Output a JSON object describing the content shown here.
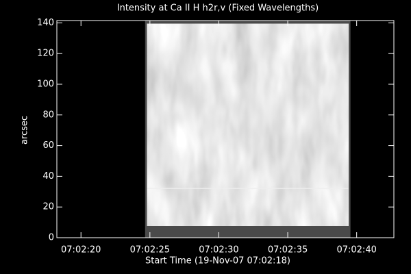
{
  "chart_data": {
    "type": "image",
    "title": "Intensity at Ca II H h2r,v (Fixed Wavelengths)",
    "x_label": "Start Time (19-Nov-07 07:02:18)",
    "y_label": "arcsec",
    "xlim": [
      0.25,
      24.7
    ],
    "xticks": [
      {
        "value": 2,
        "label": "07:02:20"
      },
      {
        "value": 7,
        "label": "07:02:25"
      },
      {
        "value": 12,
        "label": "07:02:30"
      },
      {
        "value": 17,
        "label": "07:02:35"
      },
      {
        "value": 22,
        "label": "07:02:40"
      }
    ],
    "ylim": [
      0,
      141.5
    ],
    "yticks": [
      0,
      20,
      40,
      60,
      80,
      100,
      120,
      140
    ],
    "extent": {
      "x": [
        6.65,
        21.55
      ],
      "y": [
        7.6,
        139.3
      ]
    }
  }
}
